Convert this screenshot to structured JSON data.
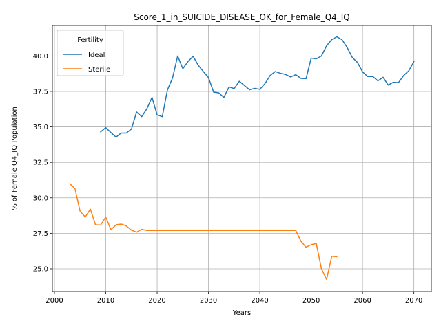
{
  "chart_data": {
    "type": "line",
    "title": "Score_1_in_SUICIDE_DISEASE_OK_for_Female_Q4_IQ",
    "xlabel": "Years",
    "ylabel": "% of Female Q4_IQ Population",
    "xlim": [
      1999.6,
      2073.4
    ],
    "ylim": [
      23.4,
      42.15
    ],
    "xticks": [
      2000,
      2010,
      2020,
      2030,
      2040,
      2050,
      2060,
      2070
    ],
    "yticks": [
      25.0,
      27.5,
      30.0,
      32.5,
      35.0,
      37.5,
      40.0
    ],
    "ytick_labels": [
      "25.0",
      "27.5",
      "30.0",
      "32.5",
      "35.0",
      "37.5",
      "40.0"
    ],
    "grid": true,
    "legend": {
      "title": "Fertility",
      "position": "top-left"
    },
    "series": [
      {
        "name": "Ideal",
        "color": "#1f77b4",
        "x": [
          2009,
          2010,
          2011,
          2012,
          2013,
          2014,
          2015,
          2016,
          2017,
          2018,
          2019,
          2020,
          2021,
          2022,
          2023,
          2024,
          2025,
          2026,
          2027,
          2028,
          2029,
          2030,
          2031,
          2032,
          2033,
          2034,
          2035,
          2036,
          2037,
          2038,
          2039,
          2040,
          2041,
          2042,
          2043,
          2044,
          2045,
          2046,
          2047,
          2048,
          2049,
          2050,
          2051,
          2052,
          2053,
          2054,
          2055,
          2056,
          2057,
          2058,
          2059,
          2060,
          2061,
          2062,
          2063,
          2064,
          2065,
          2066,
          2067,
          2068,
          2069,
          2070
        ],
        "y": [
          34.65,
          34.95,
          34.6,
          34.28,
          34.57,
          34.57,
          34.85,
          36.05,
          35.72,
          36.28,
          37.08,
          35.85,
          35.72,
          37.6,
          38.45,
          40.0,
          39.1,
          39.6,
          39.98,
          39.35,
          38.9,
          38.48,
          37.45,
          37.4,
          37.08,
          37.82,
          37.7,
          38.22,
          37.92,
          37.62,
          37.72,
          37.65,
          38.05,
          38.62,
          38.9,
          38.78,
          38.7,
          38.52,
          38.68,
          38.42,
          38.4,
          39.85,
          39.8,
          40.0,
          40.72,
          41.15,
          41.35,
          41.15,
          40.6,
          39.9,
          39.55,
          38.88,
          38.55,
          38.55,
          38.25,
          38.5,
          37.95,
          38.15,
          38.12,
          38.62,
          38.95,
          39.6
        ]
      },
      {
        "name": "Sterile",
        "color": "#ff7f0e",
        "x": [
          2003,
          2004,
          2005,
          2006,
          2007,
          2008,
          2009,
          2010,
          2011,
          2012,
          2013,
          2014,
          2015,
          2016,
          2017,
          2018,
          2019,
          2020,
          2021,
          2022,
          2023,
          2024,
          2025,
          2026,
          2027,
          2028,
          2029,
          2030,
          2031,
          2032,
          2033,
          2034,
          2035,
          2036,
          2037,
          2038,
          2039,
          2040,
          2041,
          2042,
          2043,
          2044,
          2045,
          2046,
          2047,
          2048,
          2049,
          2050,
          2051,
          2052,
          2053,
          2054,
          2055
        ],
        "y": [
          31.0,
          30.65,
          29.05,
          28.65,
          29.2,
          28.1,
          28.08,
          28.65,
          27.75,
          28.1,
          28.15,
          28.02,
          27.72,
          27.58,
          27.78,
          27.7,
          27.7,
          27.7,
          27.7,
          27.7,
          27.7,
          27.7,
          27.7,
          27.7,
          27.7,
          27.7,
          27.7,
          27.7,
          27.7,
          27.7,
          27.7,
          27.7,
          27.7,
          27.7,
          27.7,
          27.7,
          27.7,
          27.7,
          27.7,
          27.7,
          27.7,
          27.7,
          27.7,
          27.7,
          27.7,
          26.95,
          26.52,
          26.7,
          26.78,
          25.0,
          24.25,
          25.88,
          25.85
        ]
      }
    ]
  }
}
